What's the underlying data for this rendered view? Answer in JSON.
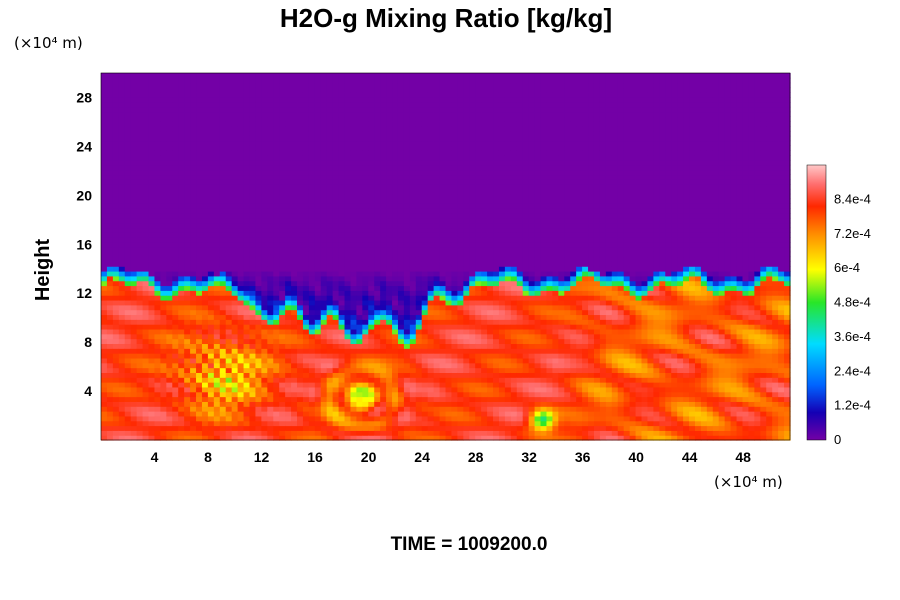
{
  "chart_data": {
    "type": "heatmap",
    "title": "H2O-g Mixing Ratio [kg/kg]",
    "ylabel": "Height",
    "x_unit": "(×10⁴ m)",
    "y_unit": "(×10⁴ m)",
    "xlim": [
      0,
      51.5
    ],
    "ylim": [
      0,
      30
    ],
    "x_ticks": [
      "4",
      "8",
      "12",
      "16",
      "20",
      "24",
      "28",
      "32",
      "36",
      "40",
      "44",
      "48"
    ],
    "y_ticks": [
      "4",
      "8",
      "12",
      "16",
      "20",
      "24",
      "28"
    ],
    "colorbar": {
      "range": [
        0,
        0.00096
      ],
      "labels": [
        "0",
        "1.2e-4",
        "2.4e-4",
        "3.6e-4",
        "4.8e-4",
        "6e-4",
        "7.2e-4",
        "8.4e-4"
      ]
    },
    "time_label": "TIME = 1009200.0",
    "field_summary": {
      "dry_layer_top_height": 14,
      "moist_interface_height": 12.5,
      "low_level_max": 0.00092
    }
  },
  "colors": {
    "dry": "#7300a6",
    "scale": [
      "#7300a6",
      "#1400b4",
      "#0064ff",
      "#00dcff",
      "#28e628",
      "#ffff00",
      "#ff8c00",
      "#ff2800",
      "#ff6e6e",
      "#ffc8c8"
    ]
  }
}
